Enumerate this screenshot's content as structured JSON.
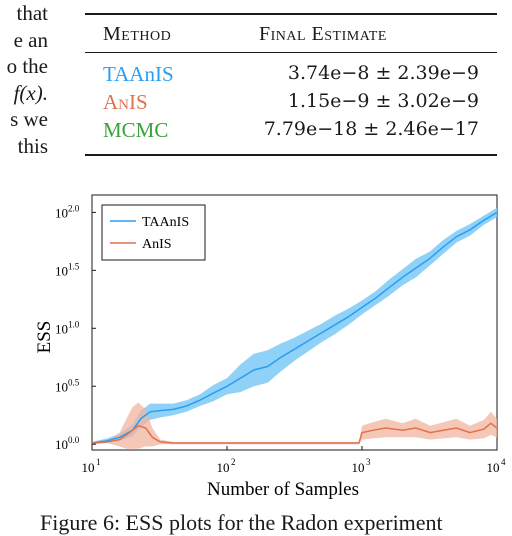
{
  "left_text": [
    "that",
    "e an",
    "o the",
    "f(x).",
    "s we",
    "this"
  ],
  "table": {
    "headers": {
      "method": "Method",
      "estimate": "Final Estimate"
    },
    "rows": [
      {
        "method": "TAAnIS",
        "estimate": "3.74e−8 ± 2.39e−9",
        "color": "#2a9df4"
      },
      {
        "method": "AnIS",
        "estimate": "1.15e−9 ± 3.02e−9",
        "color": "#e0714f"
      },
      {
        "method": "MCMC",
        "estimate": "7.79e−18 ± 2.46e−17",
        "color": "#3aa33a"
      }
    ]
  },
  "caption": "Figure 6: ESS plots for the Radon experiment",
  "chart_data": {
    "type": "line",
    "xlabel": "Number of Samples",
    "ylabel": "ESS",
    "x_scale": "log",
    "y_scale": "log",
    "xlim": [
      10,
      10000
    ],
    "ylim_log10": [
      -0.05,
      2.15
    ],
    "x_ticks": [
      {
        "base": "10",
        "exp": "1"
      },
      {
        "base": "10",
        "exp": "2"
      },
      {
        "base": "10",
        "exp": "3"
      },
      {
        "base": "10",
        "exp": "4"
      }
    ],
    "y_ticks": [
      {
        "base": "10",
        "exp": "0.0"
      },
      {
        "base": "10",
        "exp": "0.5"
      },
      {
        "base": "10",
        "exp": "1.0"
      },
      {
        "base": "10",
        "exp": "1.5"
      },
      {
        "base": "10",
        "exp": "2.0"
      }
    ],
    "legend_position": "top-left",
    "series": [
      {
        "name": "TAAnIS",
        "color": "#2a9df4",
        "band_color": "#7ccaf6",
        "x": [
          10,
          13,
          16,
          20,
          23,
          27,
          32,
          40,
          50,
          63,
          79,
          100,
          126,
          158,
          200,
          251,
          316,
          398,
          501,
          631,
          794,
          1000,
          1259,
          1585,
          1995,
          2512,
          3162,
          3981,
          5012,
          6310,
          7943,
          10000
        ],
        "y_log10": [
          0.01,
          0.03,
          0.06,
          0.12,
          0.22,
          0.28,
          0.29,
          0.3,
          0.33,
          0.38,
          0.44,
          0.5,
          0.57,
          0.64,
          0.67,
          0.75,
          0.82,
          0.89,
          0.96,
          1.03,
          1.1,
          1.18,
          1.26,
          1.35,
          1.44,
          1.52,
          1.6,
          1.7,
          1.79,
          1.85,
          1.93,
          2.0
        ],
        "band_log10": [
          0.01,
          0.02,
          0.03,
          0.05,
          0.07,
          0.07,
          0.06,
          0.05,
          0.05,
          0.05,
          0.07,
          0.07,
          0.12,
          0.14,
          0.14,
          0.12,
          0.1,
          0.09,
          0.08,
          0.08,
          0.07,
          0.06,
          0.06,
          0.07,
          0.07,
          0.08,
          0.06,
          0.06,
          0.05,
          0.05,
          0.04,
          0.04
        ]
      },
      {
        "name": "AnIS",
        "color": "#e0714f",
        "band_color": "#f2b49e",
        "x": [
          10,
          13,
          16,
          18,
          20,
          22,
          25,
          28,
          32,
          40,
          63,
          100,
          200,
          400,
          700,
          950,
          1000,
          1200,
          1500,
          2000,
          2500,
          3200,
          4000,
          5000,
          6300,
          8000,
          9000,
          10000
        ],
        "y_log10": [
          0.01,
          0.02,
          0.04,
          0.08,
          0.12,
          0.16,
          0.14,
          0.06,
          0.02,
          0.01,
          0.01,
          0.01,
          0.01,
          0.01,
          0.01,
          0.01,
          0.1,
          0.12,
          0.14,
          0.12,
          0.14,
          0.1,
          0.12,
          0.14,
          0.1,
          0.13,
          0.18,
          0.14
        ],
        "band_log10": [
          0.0,
          0.01,
          0.06,
          0.14,
          0.2,
          0.2,
          0.16,
          0.08,
          0.02,
          0.01,
          0.01,
          0.01,
          0.01,
          0.01,
          0.01,
          0.01,
          0.06,
          0.07,
          0.08,
          0.06,
          0.08,
          0.06,
          0.07,
          0.08,
          0.06,
          0.08,
          0.1,
          0.08
        ]
      }
    ]
  }
}
